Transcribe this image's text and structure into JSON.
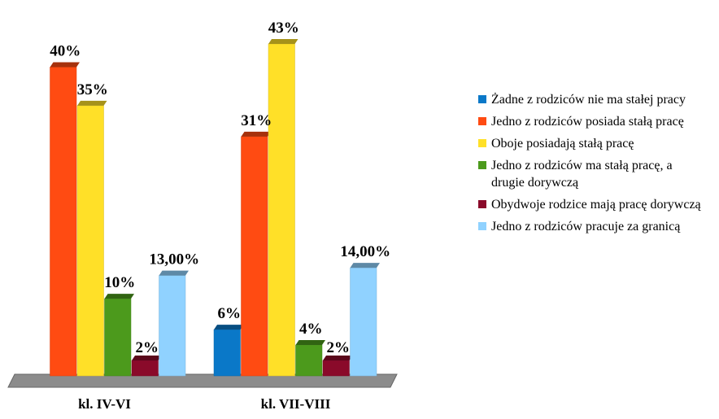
{
  "chart_data": {
    "type": "bar3d",
    "categories": [
      "kl. IV-VI",
      "kl. VII-VIII"
    ],
    "ylim": [
      0,
      45
    ],
    "series": [
      {
        "name": "Żadne z rodziców nie ma stałej pracy",
        "color": "#0a78c8",
        "values": [
          null,
          6
        ],
        "value_labels": [
          null,
          "6%"
        ]
      },
      {
        "name": "Jedno z rodziców posiada stałą pracę",
        "color": "#ff4b12",
        "values": [
          40,
          31
        ],
        "value_labels": [
          "40%",
          "31%"
        ]
      },
      {
        "name": "Oboje posiadają stałą pracę",
        "color": "#ffe028",
        "values": [
          35,
          43
        ],
        "value_labels": [
          "35%",
          "43%"
        ]
      },
      {
        "name": "Jedno z rodziców ma stałą pracę, a drugie dorywczą",
        "color": "#4c9a1c",
        "values": [
          10,
          4
        ],
        "value_labels": [
          "10%",
          "4%"
        ]
      },
      {
        "name": "Obydwoje rodzice mają pracę dorywczą",
        "color": "#8a0a2a",
        "values": [
          2,
          2
        ],
        "value_labels": [
          "2%",
          "2%"
        ]
      },
      {
        "name": "Jedno z rodziców pracuje za granicą",
        "color": "#90d2ff",
        "values": [
          13,
          14
        ],
        "value_labels": [
          "13,00%",
          "14,00%"
        ]
      }
    ]
  }
}
